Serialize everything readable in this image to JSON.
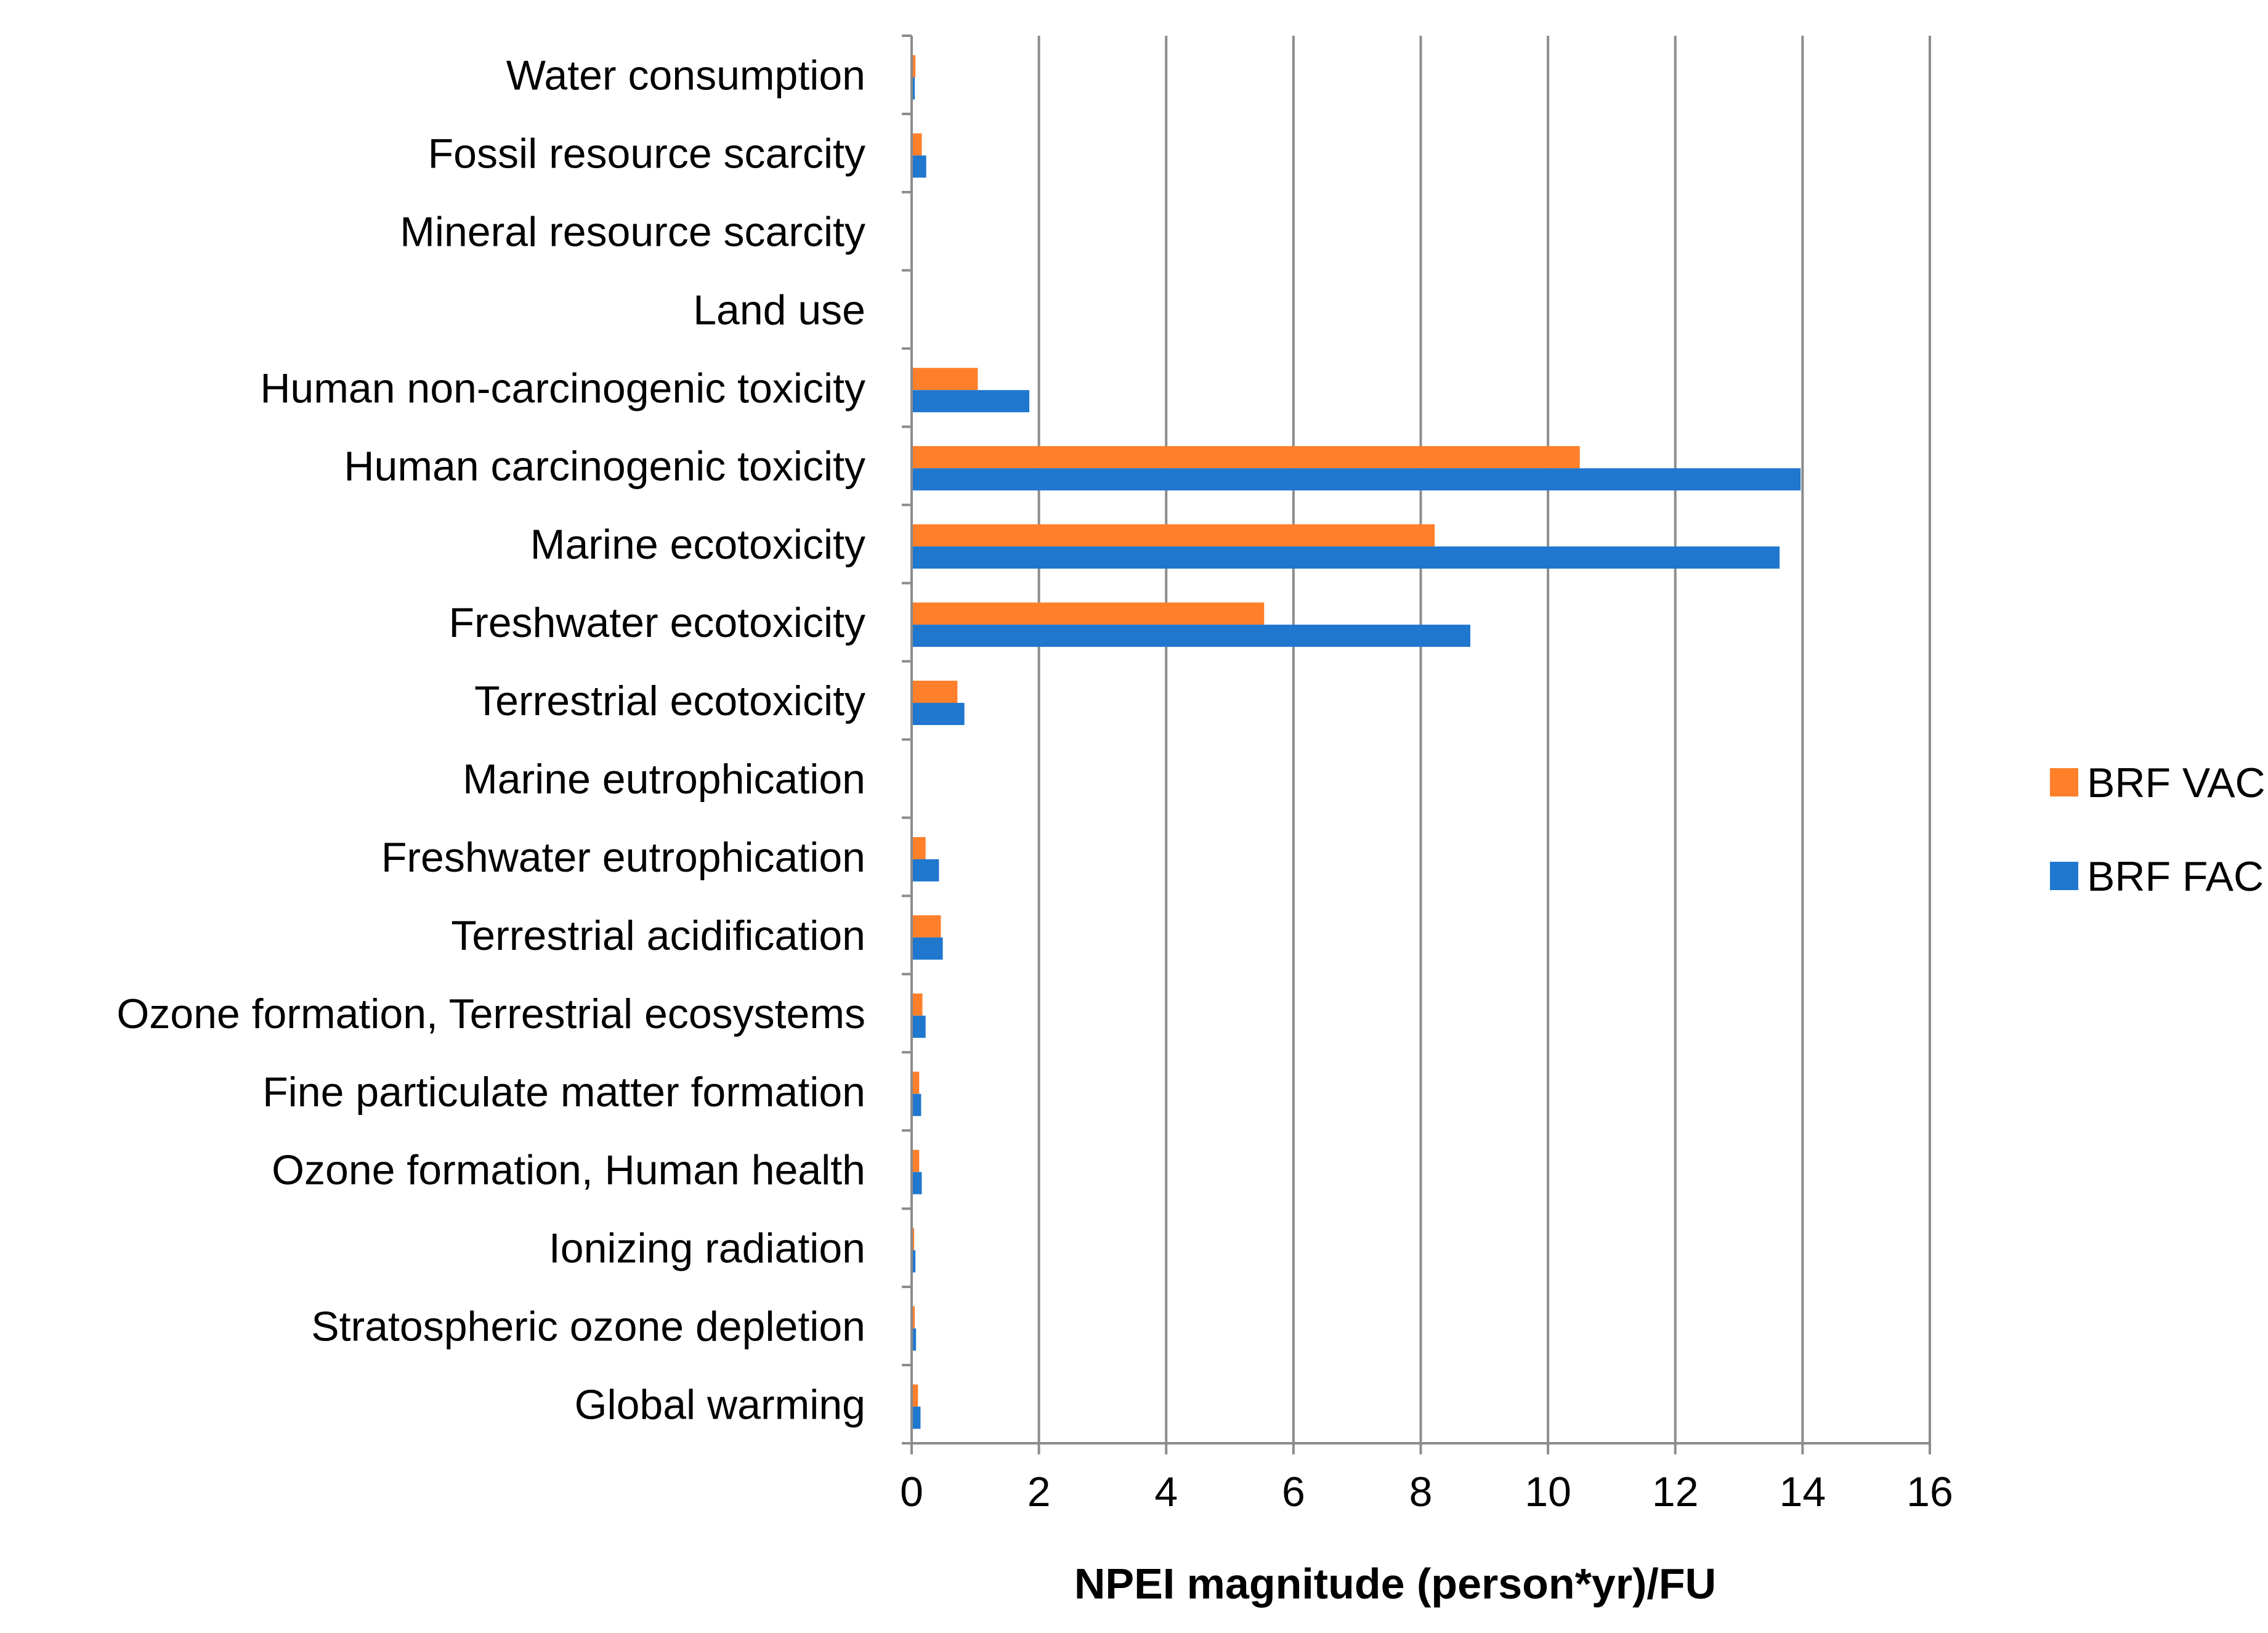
{
  "chart_data": {
    "type": "bar",
    "orientation": "horizontal",
    "title": "",
    "xlabel": "NPEI magnitude (person*yr)/FU",
    "ylabel": "",
    "xlim": [
      0,
      16
    ],
    "xticks": [
      "0",
      "2",
      "4",
      "6",
      "8",
      "10",
      "12",
      "14",
      "16"
    ],
    "grid": "vertical major gridlines",
    "legend_position": "right",
    "categories": [
      "Water consumption",
      "Fossil resource scarcity",
      "Mineral resource scarcity",
      "Land use",
      "Human non-carcinogenic toxicity",
      "Human carcinogenic toxicity",
      "Marine ecotoxicity",
      "Freshwater ecotoxicity",
      "Terrestrial ecotoxicity",
      "Marine eutrophication",
      "Freshwater eutrophication",
      "Terrestrial acidification",
      "Ozone formation, Terrestrial ecosystems",
      "Fine particulate matter formation",
      "Ozone formation, Human health",
      "Ionizing radiation",
      "Stratospheric ozone depletion",
      "Global warming"
    ],
    "series": [
      {
        "name": "BRF VAC",
        "color": "#FF7F2A",
        "values": [
          0.04,
          0.14,
          0.0,
          0.0,
          1.02,
          10.48,
          8.2,
          5.52,
          0.7,
          0.0,
          0.2,
          0.44,
          0.15,
          0.1,
          0.1,
          0.02,
          0.03,
          0.08
        ]
      },
      {
        "name": "BRF FAC",
        "color": "#1F77CE",
        "values": [
          0.03,
          0.21,
          0.0,
          0.0,
          1.83,
          13.95,
          13.62,
          8.76,
          0.81,
          0.0,
          0.41,
          0.47,
          0.2,
          0.13,
          0.14,
          0.04,
          0.05,
          0.12
        ]
      }
    ]
  }
}
